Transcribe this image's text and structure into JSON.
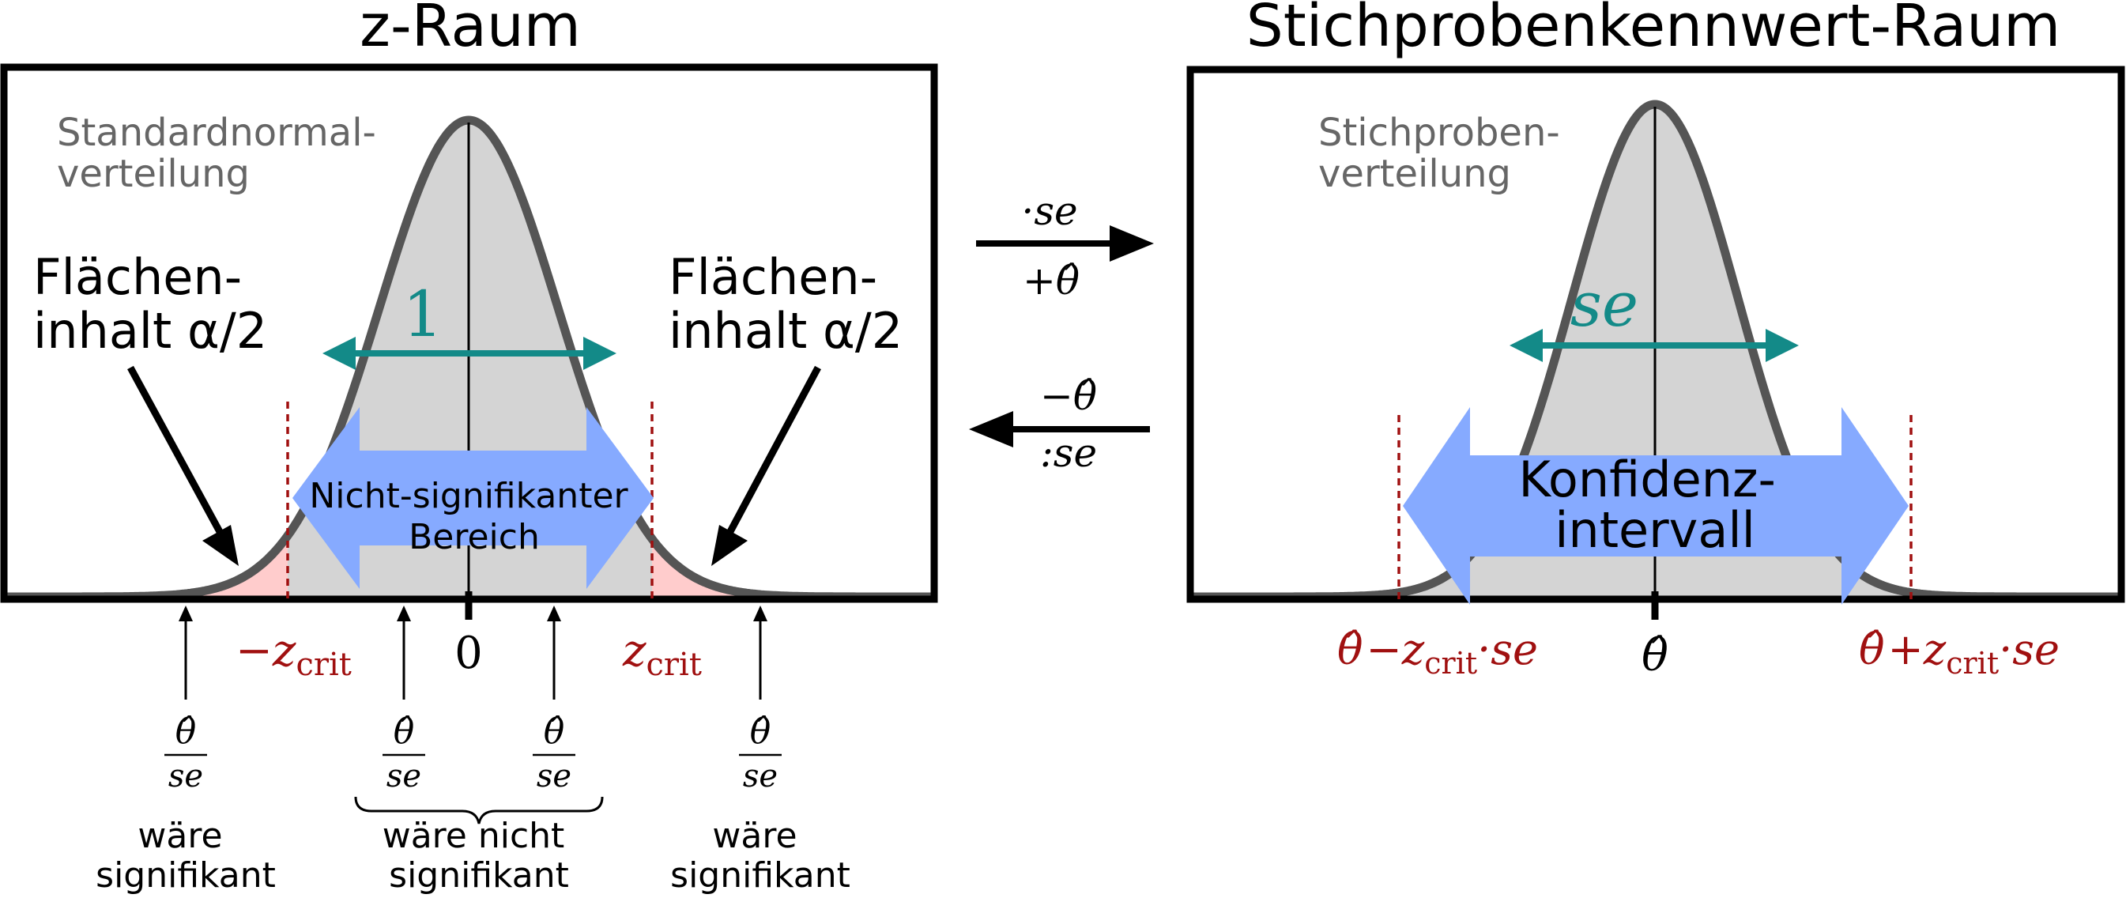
{
  "left_panel": {
    "title": "z-Raum",
    "dist_label": [
      "Standardnormal-",
      "verteilung"
    ],
    "area_label_left": [
      "Flächen-",
      "inhalt α/2"
    ],
    "area_label_right": [
      "Flächen-",
      "inhalt α/2"
    ],
    "width_label": "1",
    "region_label": [
      "Nicht-signifikanter",
      "Bereich"
    ],
    "tick_minus": "−z",
    "tick_plus": "z",
    "tick_sub": "crit",
    "tick_zero": "0",
    "frac_num": "θ̂",
    "frac_den": "se",
    "caption_left": [
      "wäre",
      "signifikant"
    ],
    "caption_mid": [
      "wäre nicht",
      "signifikant"
    ],
    "caption_right": [
      "wäre",
      "signifikant"
    ]
  },
  "transform": {
    "forward_top": "·se",
    "forward_bottom": "+θ̂",
    "backward_top": "−θ̂",
    "backward_bottom": ":se"
  },
  "right_panel": {
    "title": "Stichprobenkennwert-Raum",
    "dist_label": [
      "Stichproben-",
      "verteilung"
    ],
    "width_label": "se",
    "region_label": [
      "Konfidenz-",
      "intervall"
    ],
    "tick_center": "θ̂",
    "tick_left_a": "θ̂",
    "tick_left_b": "−z",
    "tick_left_c": "·se",
    "tick_right_a": "θ̂",
    "tick_right_b": "+z",
    "tick_right_c": "·se",
    "tick_sub": "crit"
  },
  "colors": {
    "curve": "#555555",
    "fill_center": "#d4d4d4",
    "fill_tail": "#ffcccc",
    "crit_line": "#a01010",
    "width_arrow": "#138a88",
    "region_arrow": "#86aaff"
  }
}
